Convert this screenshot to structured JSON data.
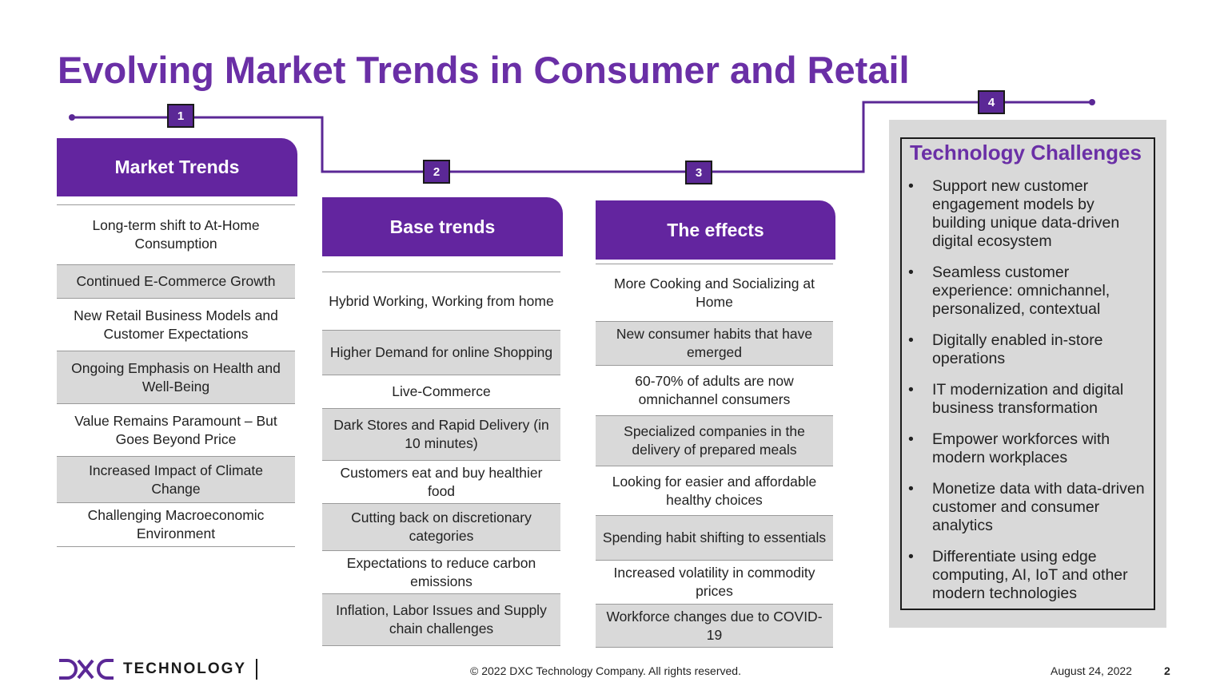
{
  "title": "Evolving Market Trends in Consumer and Retail",
  "steps": [
    "1",
    "2",
    "3",
    "4"
  ],
  "columns": [
    {
      "heading": "Market Trends",
      "rows": [
        "Long-term shift to At-Home Consumption",
        "Continued E-Commerce Growth",
        "New Retail Business Models and Customer Expectations",
        "Ongoing Emphasis on Health and Well-Being",
        "Value Remains Paramount – But Goes Beyond Price",
        "Increased Impact of Climate Change",
        "Challenging Macroeconomic Environment"
      ]
    },
    {
      "heading": "Base trends",
      "rows": [
        "Hybrid Working, Working from home",
        "Higher Demand for online Shopping",
        "Live-Commerce",
        "Dark Stores and Rapid Delivery (in 10 minutes)",
        "Customers eat and buy healthier food",
        "Cutting back on discretionary categories",
        "Expectations to reduce carbon emissions",
        "Inflation, Labor Issues and Supply chain challenges"
      ]
    },
    {
      "heading": "The effects",
      "rows": [
        "More Cooking and Socializing at Home",
        "New consumer habits that have emerged",
        "60-70% of adults are now omnichannel consumers",
        "Specialized companies in the delivery of prepared meals",
        "Looking for easier and affordable healthy choices",
        "Spending habit shifting to essentials",
        "Increased volatility in commodity prices",
        "Workforce changes due to COVID-19"
      ]
    }
  ],
  "tech": {
    "title": "Technology Challenges",
    "bullet_char": "•",
    "bullets": [
      "Support new customer engagement models by building unique data-driven digital ecosystem",
      "Seamless customer experience: omnichannel, personalized, contextual",
      "Digitally enabled in-store operations",
      "IT modernization and digital business transformation",
      "Empower workforces with modern workplaces",
      "Monetize data with data-driven customer and consumer analytics",
      "Differentiate using edge computing, AI, IoT and other modern technologies"
    ]
  },
  "footer": {
    "logo_text": "TECHNOLOGY",
    "copyright": "© 2022 DXC Technology Company. All rights reserved.",
    "date": "August 24, 2022",
    "page": "2"
  },
  "colors": {
    "accent": "#6a2fa6",
    "header_fill": "#63259f",
    "shade": "#d9d9d9"
  }
}
